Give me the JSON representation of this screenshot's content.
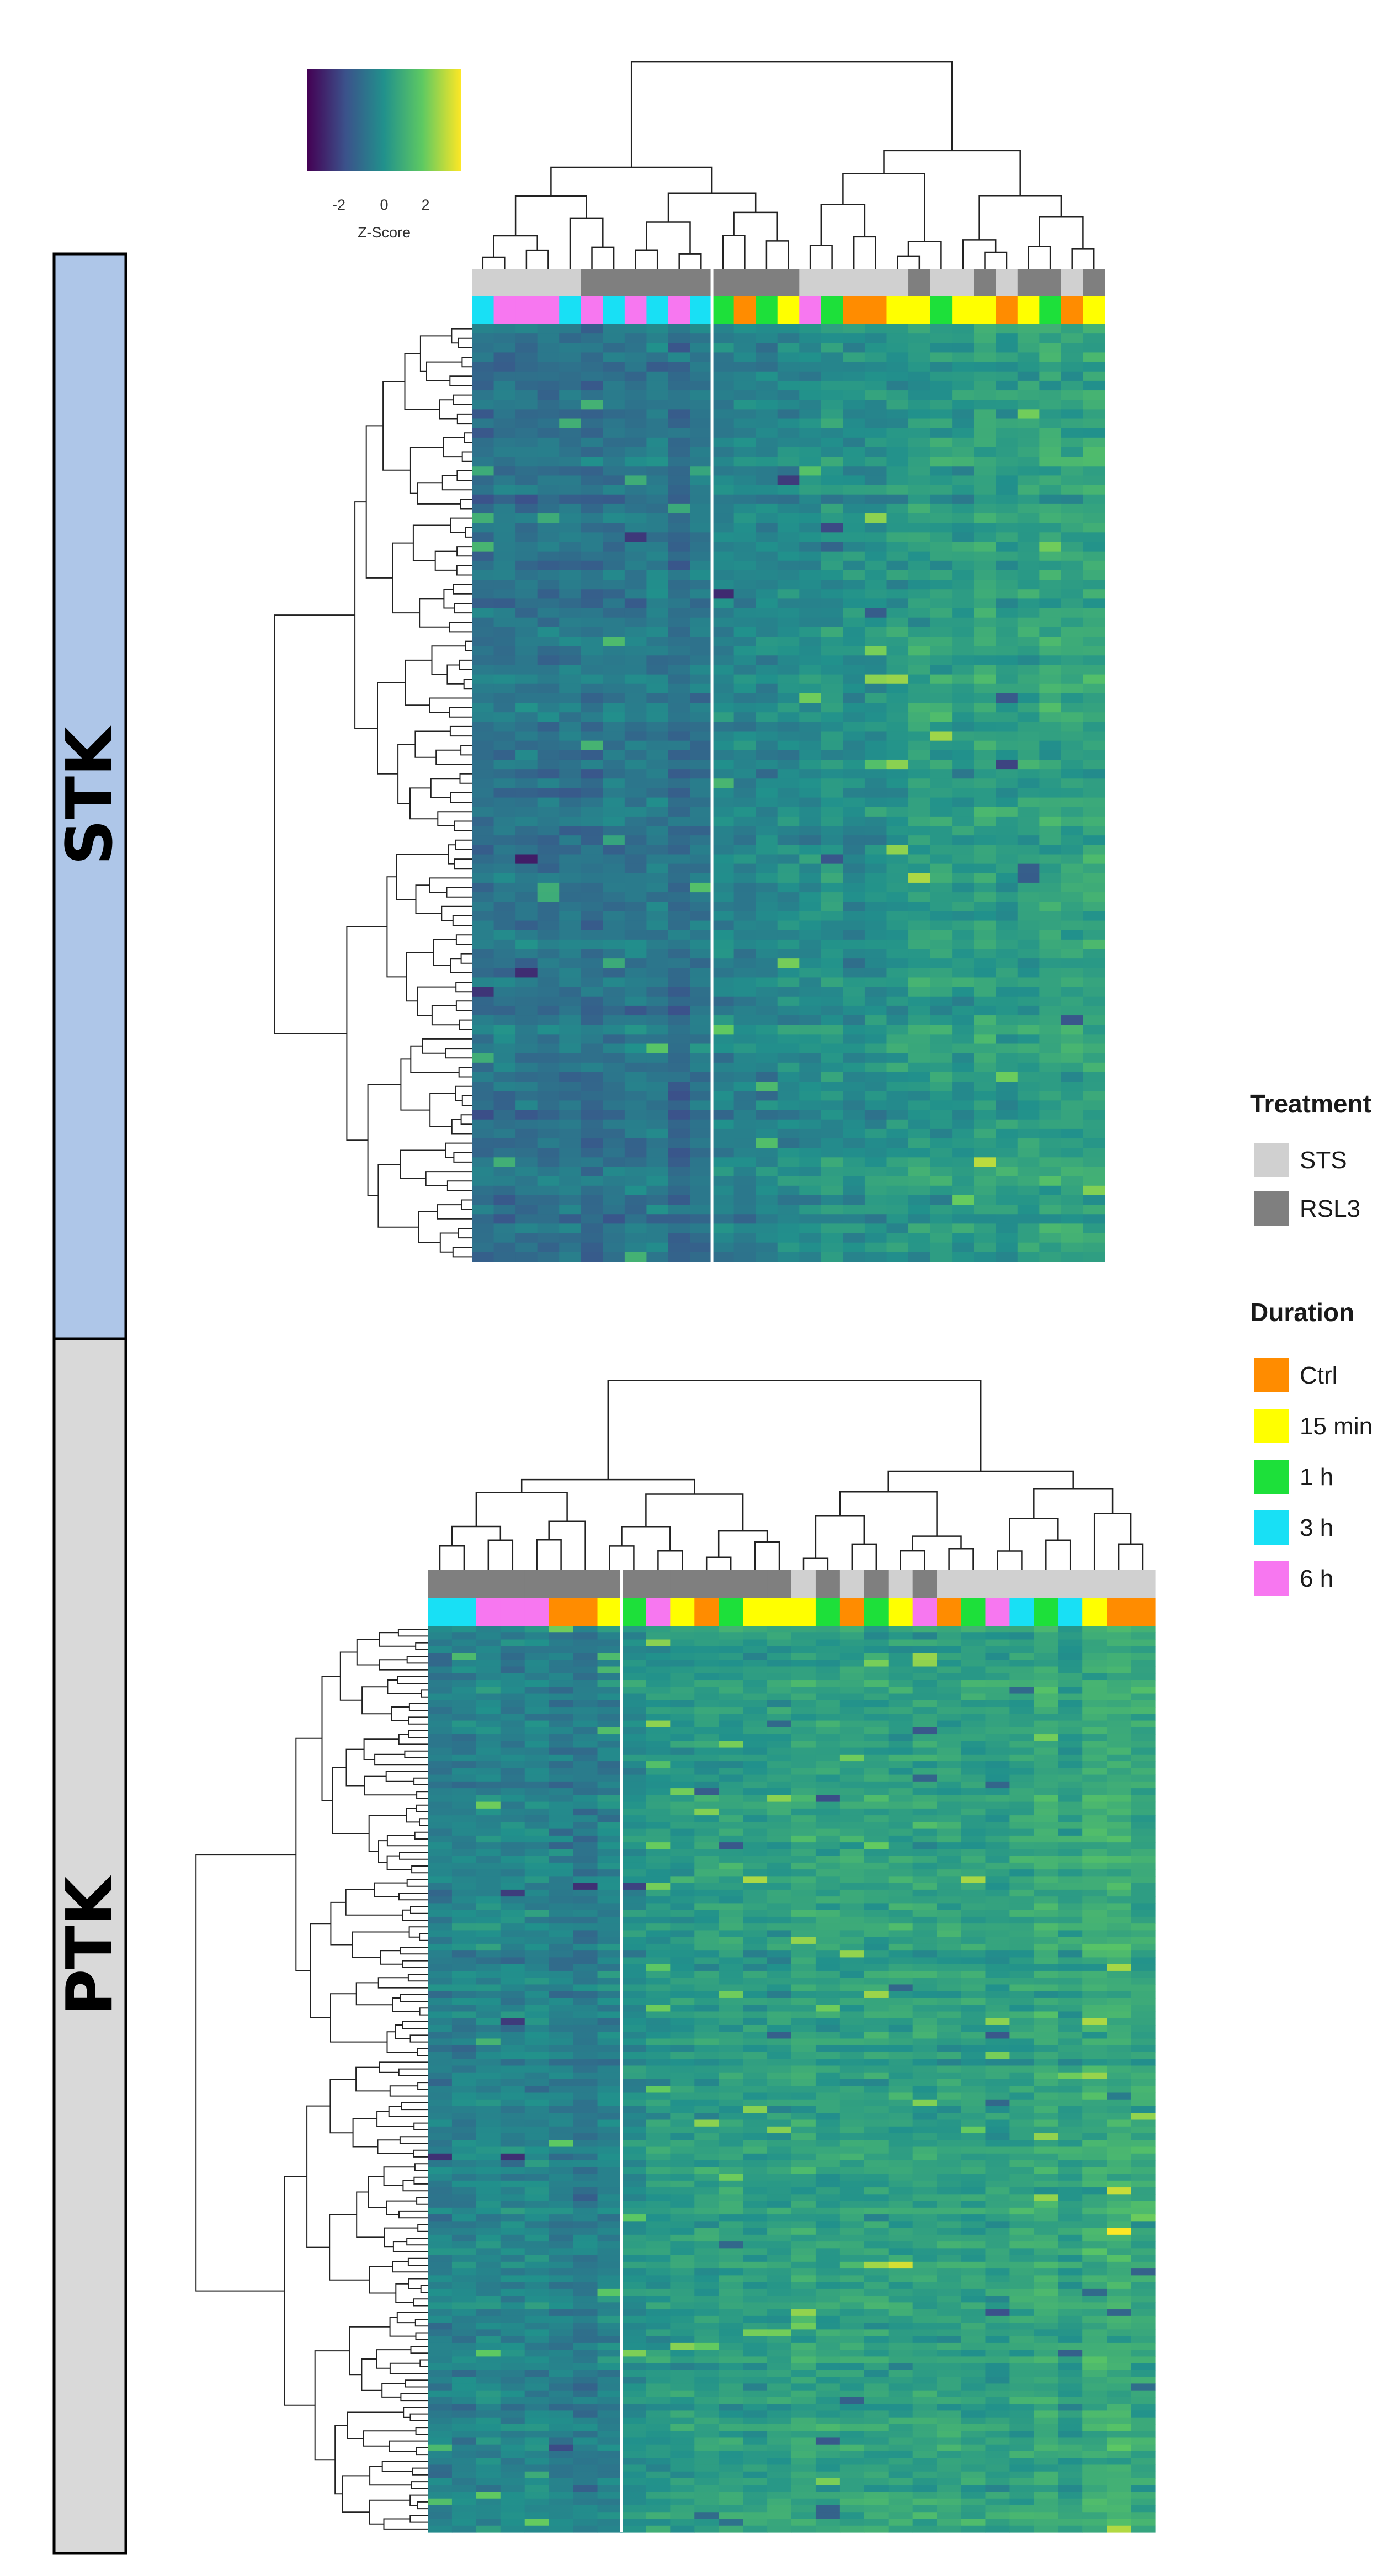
{
  "chart_data": [
    {
      "type": "heatmap",
      "panel_label": "STK",
      "panel_color": "#aec6e8",
      "rows": 99,
      "treatment_annotation": [
        "STS",
        "STS",
        "STS",
        "STS",
        "STS",
        "RSL3",
        "RSL3",
        "RSL3",
        "RSL3",
        "RSL3",
        "RSL3",
        "RSL3",
        "RSL3",
        "RSL3",
        "RSL3",
        "STS",
        "STS",
        "STS",
        "STS",
        "STS",
        "RSL3",
        "STS",
        "STS",
        "RSL3",
        "STS",
        "RSL3",
        "RSL3",
        "STS",
        "RSL3"
      ],
      "duration_annotation": [
        "3 h",
        "6 h",
        "6 h",
        "6 h",
        "3 h",
        "6 h",
        "3 h",
        "6 h",
        "3 h",
        "6 h",
        "3 h",
        "1 h",
        "Ctrl",
        "1 h",
        "15 min",
        "6 h",
        "1 h",
        "Ctrl",
        "Ctrl",
        "15 min",
        "15 min",
        "1 h",
        "15 min",
        "15 min",
        "Ctrl",
        "15 min",
        "1 h",
        "Ctrl",
        "15 min"
      ],
      "split_after_column": 11,
      "value_range": [
        -3.5,
        3.5
      ]
    },
    {
      "type": "heatmap",
      "panel_label": "PTK",
      "panel_color": "#d9d9d9",
      "rows": 134,
      "treatment_annotation": [
        "RSL3",
        "RSL3",
        "RSL3",
        "RSL3",
        "RSL3",
        "RSL3",
        "RSL3",
        "RSL3",
        "RSL3",
        "RSL3",
        "RSL3",
        "RSL3",
        "RSL3",
        "RSL3",
        "RSL3",
        "STS",
        "RSL3",
        "STS",
        "RSL3",
        "STS",
        "RSL3",
        "STS",
        "STS",
        "STS",
        "STS",
        "STS",
        "STS",
        "STS",
        "STS",
        "STS"
      ],
      "duration_annotation": [
        "3 h",
        "3 h",
        "6 h",
        "6 h",
        "6 h",
        "Ctrl",
        "Ctrl",
        "15 min",
        "1 h",
        "6 h",
        "15 min",
        "Ctrl",
        "1 h",
        "15 min",
        "15 min",
        "15 min",
        "1 h",
        "Ctrl",
        "1 h",
        "15 min",
        "6 h",
        "Ctrl",
        "1 h",
        "6 h",
        "3 h",
        "1 h",
        "3 h",
        "15 min",
        "Ctrl",
        "Ctrl"
      ],
      "split_after_column": 8,
      "value_range": [
        -3.5,
        3.5
      ]
    }
  ],
  "color_scale": {
    "title": "Z-Score",
    "ticks": [
      "-2",
      "0",
      "2"
    ],
    "tick_values": [
      -2,
      0,
      2
    ],
    "range": [
      -3.5,
      3.5
    ],
    "colors": [
      "#440154",
      "#3b528b",
      "#21918c",
      "#5ec962",
      "#fde725"
    ]
  },
  "legend": {
    "treatment_title": "Treatment",
    "treatment_items": [
      {
        "label": "STS",
        "color": "#d0d0d0"
      },
      {
        "label": "RSL3",
        "color": "#7f7f7f"
      }
    ],
    "duration_title": "Duration",
    "duration_items": [
      {
        "label": "Ctrl",
        "color": "#ff8c00"
      },
      {
        "label": "15 min",
        "color": "#ffff00"
      },
      {
        "label": "1 h",
        "color": "#1de03a"
      },
      {
        "label": "3 h",
        "color": "#18e0f5"
      },
      {
        "label": "6 h",
        "color": "#f777f0"
      }
    ]
  }
}
